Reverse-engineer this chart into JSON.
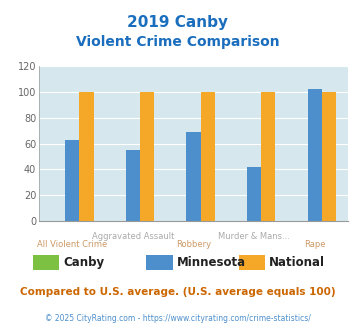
{
  "title_line1": "2019 Canby",
  "title_line2": "Violent Crime Comparison",
  "categories": [
    "All Violent Crime",
    "Aggravated Assault",
    "Robbery",
    "Murder & Mans...",
    "Rape"
  ],
  "cat_labels_top": [
    "",
    "Aggravated Assault",
    "",
    "Murder & Mans...",
    ""
  ],
  "cat_labels_bot": [
    "All Violent Crime",
    "",
    "Robbery",
    "",
    "Rape"
  ],
  "series": {
    "Canby": [
      0,
      0,
      0,
      0,
      0
    ],
    "Minnesota": [
      63,
      55,
      69,
      42,
      102
    ],
    "National": [
      100,
      100,
      100,
      100,
      100
    ]
  },
  "colors": {
    "Canby": "#7dc142",
    "Minnesota": "#4d8fcc",
    "National": "#f5a828"
  },
  "ylim": [
    0,
    120
  ],
  "yticks": [
    0,
    20,
    40,
    60,
    80,
    100,
    120
  ],
  "bg_color": "#d6e8ed",
  "title_color": "#1a6ebd",
  "xlabel_top_color": "#aaaaaa",
  "xlabel_bot_color": "#cc9966",
  "footnote1": "Compared to U.S. average. (U.S. average equals 100)",
  "footnote2": "© 2025 CityRating.com - https://www.cityrating.com/crime-statistics/",
  "footnote1_color": "#cc6600",
  "footnote2_color": "#4d8fcc",
  "legend_label_color": "#222222"
}
